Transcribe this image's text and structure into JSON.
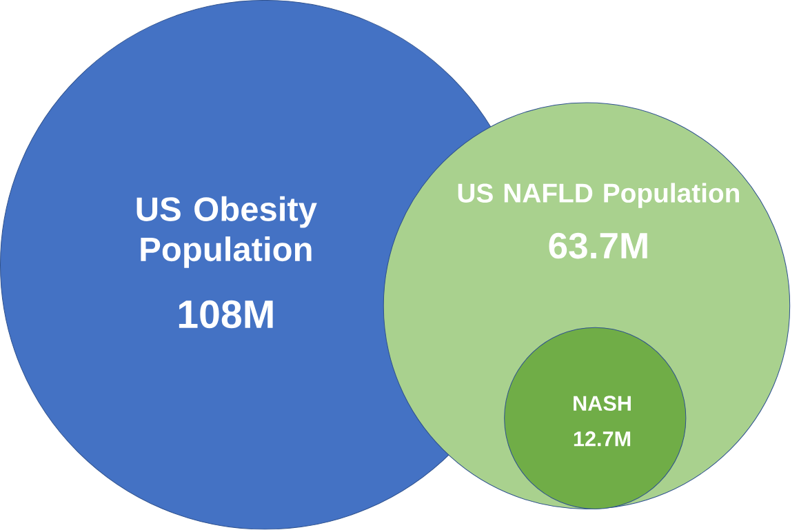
{
  "chart_data": {
    "type": "other",
    "categories": [
      "US Obesity Population",
      "US NAFLD Population",
      "NASH"
    ],
    "values": [
      108,
      63.7,
      12.7
    ],
    "value_labels": [
      "108M",
      "63.7M",
      "12.7M"
    ],
    "colors": [
      "#4472c4",
      "#a9d18e",
      "#70ad47"
    ]
  }
}
